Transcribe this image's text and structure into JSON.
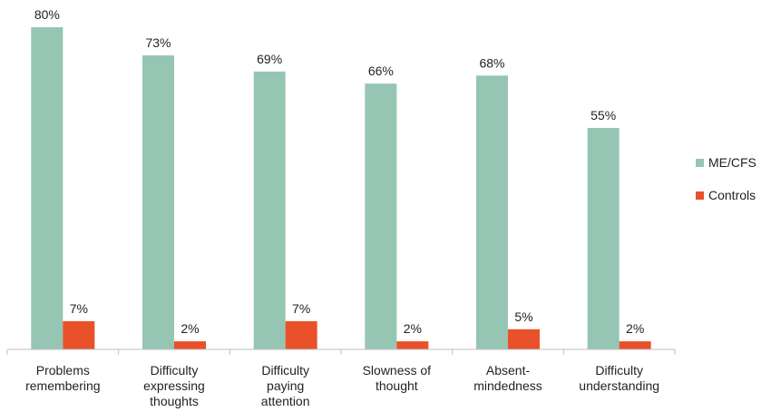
{
  "chart_data": {
    "type": "bar",
    "title": "",
    "xlabel": "",
    "ylabel": "",
    "ylim": [
      0,
      80
    ],
    "grid": false,
    "legend_position": "right",
    "categories": [
      [
        "Problems",
        "remembering"
      ],
      [
        "Difficulty",
        "expressing",
        "thoughts"
      ],
      [
        "Difficulty",
        "paying",
        "attention"
      ],
      [
        "Slowness of",
        "thought"
      ],
      [
        "Absent-",
        "mindedness"
      ],
      [
        "Difficulty",
        "understanding"
      ]
    ],
    "series": [
      {
        "name": "ME/CFS",
        "color": "#96c5b3",
        "values": [
          80,
          73,
          69,
          66,
          68,
          55
        ]
      },
      {
        "name": "Controls",
        "color": "#e8512a",
        "values": [
          7,
          2,
          7,
          2,
          5,
          2
        ]
      }
    ],
    "value_suffix": "%"
  }
}
